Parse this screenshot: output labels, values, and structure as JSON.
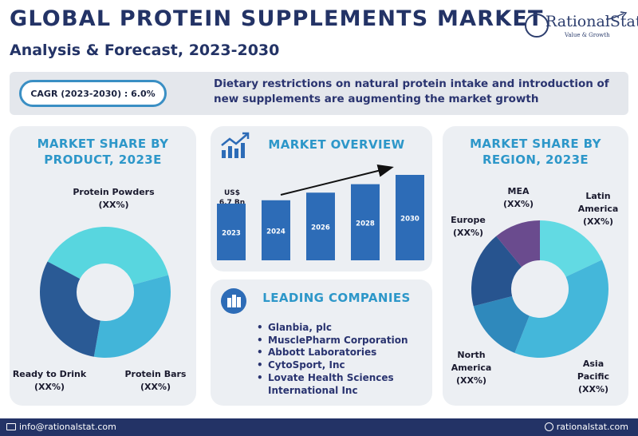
{
  "header": {
    "title": "GLOBAL PROTEIN SUPPLEMENTS MARKET",
    "subtitle": "Analysis & Forecast, 2023-2030"
  },
  "logo": {
    "name": "RationalStat",
    "tagline": "Value & Growth"
  },
  "cagr": {
    "label": "CAGR (2023-2030) : 6.0%",
    "note": "Dietary restrictions on natural protein intake and introduction of new supplements are augmenting the market growth"
  },
  "panels": {
    "product_title": [
      "MARKET SHARE BY",
      "PRODUCT, 2023E"
    ],
    "overview_title": "MARKET OVERVIEW",
    "companies_title": "LEADING COMPANIES",
    "region_title": [
      "MARKET SHARE BY",
      "REGION, 2023E"
    ]
  },
  "companies": [
    "Glanbia, plc",
    "MusclePharm Corporation",
    "Abbott Laboratories",
    "CytoSport, Inc",
    "Lovate Health Sciences",
    "International Inc"
  ],
  "footer": {
    "email": "info@rationalstat.com",
    "website": "rationalstat.com"
  },
  "colors": {
    "navy": "#233366",
    "accent": "#2d97c9",
    "bar": "#2d6cb7"
  },
  "icons": [
    "growth-chart-icon",
    "buildings-icon",
    "email-icon",
    "globe-icon"
  ],
  "chart_data": [
    {
      "type": "donut",
      "title": "MARKET SHARE BY PRODUCT, 2023E",
      "series": [
        {
          "name": "Protein Powders",
          "label": [
            "Protein Powders",
            "(XX%)"
          ],
          "value": 38,
          "color": "#58d6df"
        },
        {
          "name": "Protein Bars",
          "label": [
            "Protein Bars",
            "(XX%)"
          ],
          "value": 32,
          "color": "#42b5d9"
        },
        {
          "name": "Ready to Drink",
          "label": [
            "Ready to Drink",
            "(XX%)"
          ],
          "value": 30,
          "color": "#2a5a95"
        }
      ]
    },
    {
      "type": "bar",
      "title": "MARKET OVERVIEW",
      "categories": [
        "2023",
        "2024",
        "2026",
        "2028",
        "2030"
      ],
      "values": [
        6.7,
        7.1,
        8.0,
        9.0,
        10.1
      ],
      "annotation": [
        "US$",
        "6.7 Bn"
      ]
    },
    {
      "type": "donut",
      "title": "MARKET SHARE BY REGION, 2023E",
      "series": [
        {
          "name": "Latin America",
          "label": [
            "Latin",
            "America",
            "(XX%)"
          ],
          "value": 18,
          "color": "#62dae3"
        },
        {
          "name": "Asia Pacific",
          "label": [
            "Asia",
            "Pacific",
            "(XX%)"
          ],
          "value": 38,
          "color": "#44b7da"
        },
        {
          "name": "North America",
          "label": [
            "North",
            "America",
            "(XX%)"
          ],
          "value": 15,
          "color": "#2f89bc"
        },
        {
          "name": "Europe",
          "label": [
            "Europe",
            "(XX%)"
          ],
          "value": 18,
          "color": "#27548f"
        },
        {
          "name": "MEA",
          "label": [
            "MEA",
            "(XX%)"
          ],
          "value": 11,
          "color": "#6a4b8e"
        }
      ]
    }
  ]
}
